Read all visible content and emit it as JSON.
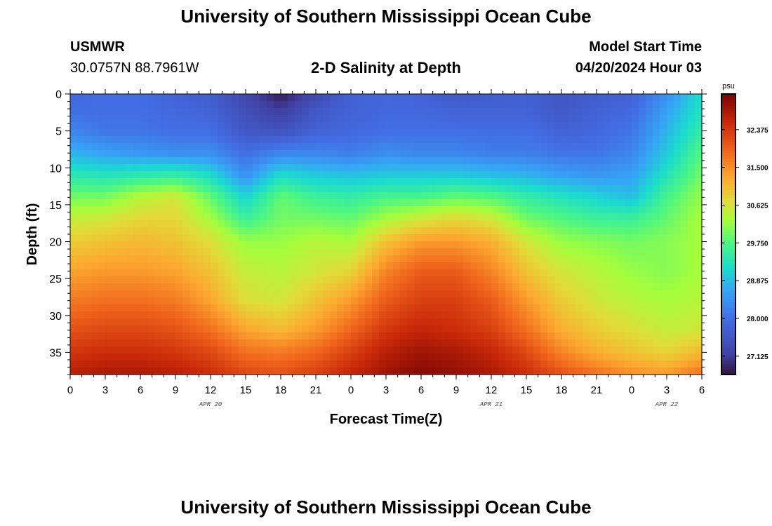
{
  "header": {
    "title": "University of Southern Mississippi Ocean Cube",
    "station": "USMWR",
    "coords": "30.0757N  88.7961W",
    "subtitle": "2-D Salinity at Depth",
    "model_label": "Model Start Time",
    "model_time": "04/20/2024 Hour 03"
  },
  "footer": {
    "title": "University of Southern Mississippi Ocean Cube"
  },
  "chart_data": {
    "type": "heatmap",
    "xlabel": "Forecast Time(Z)",
    "ylabel": "Depth (ft)",
    "x_tick_labels": [
      "0",
      "3",
      "6",
      "9",
      "12",
      "15",
      "18",
      "21",
      "0",
      "3",
      "6",
      "9",
      "12",
      "15",
      "18",
      "21",
      "0",
      "3",
      "6"
    ],
    "x_tick_hours": [
      0,
      3,
      6,
      9,
      12,
      15,
      18,
      21,
      24,
      27,
      30,
      33,
      36,
      39,
      42,
      45,
      48,
      51,
      54
    ],
    "date_labels": [
      {
        "label": "APR 20",
        "hour": 12
      },
      {
        "label": "APR 21",
        "hour": 36
      },
      {
        "label": "APR 22",
        "hour": 51
      }
    ],
    "xlim": [
      0,
      54
    ],
    "ylim": [
      38,
      0
    ],
    "y_ticks": [
      0,
      5,
      10,
      15,
      20,
      25,
      30,
      35
    ],
    "colorbar": {
      "unit": "psu",
      "range": [
        26.7,
        33.2
      ],
      "tick_values": [
        27.125,
        28.0,
        28.875,
        29.75,
        30.625,
        31.5,
        32.375
      ],
      "tick_labels": [
        "27.125",
        "28.000",
        "28.875",
        "29.750",
        "30.625",
        "31.500",
        "32.375"
      ]
    },
    "grid_hours": [
      0,
      3,
      6,
      9,
      12,
      15,
      18,
      21,
      24,
      27,
      30,
      33,
      36,
      39,
      42,
      45,
      48,
      51,
      54
    ],
    "grid_depths_ft": [
      0,
      2,
      5,
      8,
      11,
      14,
      17,
      20,
      24,
      28,
      32,
      35,
      38
    ],
    "salinity_psu": [
      [
        27.9,
        28.0,
        28.0,
        27.8,
        27.7,
        27.3,
        26.8,
        27.3,
        27.8,
        27.9,
        27.8,
        27.6,
        27.7,
        27.8,
        27.6,
        27.7,
        27.8,
        28.4,
        29.2
      ],
      [
        28.0,
        28.0,
        28.0,
        27.9,
        27.8,
        27.4,
        27.1,
        27.6,
        27.8,
        27.9,
        27.9,
        27.8,
        27.8,
        27.8,
        27.6,
        27.8,
        27.9,
        28.6,
        29.3
      ],
      [
        28.3,
        28.1,
        28.1,
        28.0,
        28.0,
        27.6,
        27.5,
        27.8,
        27.9,
        28.0,
        28.0,
        28.0,
        28.0,
        28.0,
        27.8,
        27.9,
        28.1,
        28.8,
        29.5
      ],
      [
        28.8,
        28.6,
        28.5,
        28.4,
        28.4,
        28.0,
        28.3,
        28.3,
        28.2,
        28.4,
        28.3,
        28.3,
        28.2,
        28.2,
        28.1,
        28.1,
        28.3,
        29.0,
        29.8
      ],
      [
        29.4,
        29.3,
        29.4,
        29.5,
        29.2,
        28.4,
        29.2,
        29.0,
        28.9,
        29.0,
        29.0,
        29.0,
        28.9,
        28.8,
        28.6,
        28.5,
        28.6,
        29.3,
        30.0
      ],
      [
        30.0,
        30.0,
        30.4,
        30.6,
        29.9,
        29.1,
        29.9,
        29.6,
        29.5,
        29.7,
        29.7,
        29.9,
        29.8,
        29.5,
        29.3,
        29.1,
        28.9,
        29.7,
        30.2
      ],
      [
        30.5,
        30.6,
        30.8,
        30.8,
        30.3,
        29.6,
        30.0,
        30.0,
        29.9,
        30.3,
        30.6,
        30.8,
        30.6,
        30.0,
        29.8,
        29.6,
        29.6,
        29.9,
        30.3
      ],
      [
        30.9,
        31.0,
        31.1,
        31.0,
        30.7,
        30.2,
        30.2,
        30.4,
        30.3,
        31.0,
        31.4,
        31.4,
        31.2,
        30.6,
        30.2,
        30.1,
        30.0,
        30.1,
        30.3
      ],
      [
        31.3,
        31.4,
        31.4,
        31.3,
        31.0,
        30.5,
        30.4,
        30.6,
        30.8,
        31.6,
        32.0,
        32.0,
        31.6,
        31.0,
        30.6,
        30.4,
        30.2,
        30.1,
        30.3
      ],
      [
        31.7,
        31.8,
        31.8,
        31.7,
        31.3,
        30.7,
        30.6,
        31.0,
        31.4,
        32.0,
        32.3,
        32.3,
        32.0,
        31.4,
        30.9,
        30.6,
        30.4,
        30.3,
        30.4
      ],
      [
        32.1,
        32.2,
        32.2,
        32.1,
        31.8,
        31.3,
        31.1,
        31.4,
        31.9,
        32.4,
        32.6,
        32.5,
        32.3,
        31.8,
        31.2,
        30.9,
        30.7,
        30.5,
        30.6
      ],
      [
        32.4,
        32.5,
        32.5,
        32.4,
        32.2,
        31.8,
        31.7,
        31.9,
        32.3,
        32.7,
        32.9,
        32.8,
        32.6,
        32.2,
        31.6,
        31.2,
        31.0,
        30.8,
        31.1
      ],
      [
        32.7,
        32.8,
        32.8,
        32.7,
        32.5,
        32.2,
        32.1,
        32.3,
        32.6,
        32.9,
        33.1,
        33.0,
        32.8,
        32.5,
        32.1,
        31.8,
        31.5,
        31.4,
        31.8
      ]
    ]
  }
}
